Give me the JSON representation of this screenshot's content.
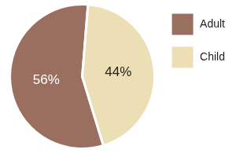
{
  "chart_data": {
    "type": "pie",
    "categories": [
      "Adult",
      "Child"
    ],
    "values": [
      56,
      44
    ],
    "value_labels": [
      "56%",
      "44%"
    ],
    "colors": [
      "#9b6f5f",
      "#ecdfb6"
    ],
    "legend": "top-right",
    "data_labels": true
  }
}
